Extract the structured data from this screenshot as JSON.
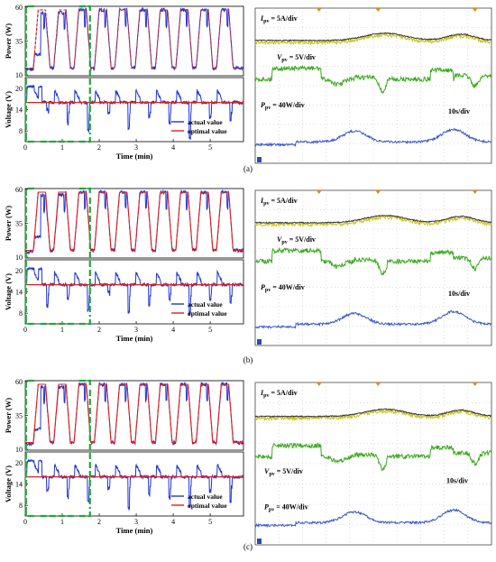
{
  "figure": {
    "panels": [
      {
        "caption": "(a)"
      },
      {
        "caption": "(b)"
      },
      {
        "caption": "(c)"
      }
    ]
  },
  "colors": {
    "actual": "#1f35d6",
    "optimal": "#e0201a",
    "bracket": "#22a83a",
    "scope_bg": "#ffffff",
    "scope_grid": "#b9b9b9",
    "ipv_trace": "#c9c21c",
    "vpv_trace": "#3aa81c",
    "ppv_trace": "#3b58c8"
  },
  "chart_data": [
    {
      "type": "line",
      "panel": "(a)",
      "x_label": "Time (min)",
      "x_ticks": [
        "0",
        "1",
        "2",
        "3",
        "4",
        "5"
      ],
      "xlim": [
        0,
        5.9
      ],
      "power": {
        "ylabel": "Power (W)",
        "ylim": [
          10,
          60
        ],
        "yticks": [
          "60",
          "35",
          "10"
        ]
      },
      "voltage": {
        "ylabel": "Voltage (V)",
        "ylim": [
          5,
          23
        ],
        "yticks": [
          "20",
          "14",
          "8"
        ]
      },
      "legend": [
        "actual value",
        "optimal value"
      ],
      "cycles": [
        0.4,
        1.0,
        1.6,
        2.2,
        2.7,
        3.3,
        3.8,
        4.4,
        5.0,
        5.5
      ],
      "power_optimal_high": 58,
      "power_optimal_low": 15,
      "voltage_optimal": 16,
      "voltage_actual_dips": [
        14,
        10,
        8,
        13,
        9,
        12,
        10,
        6,
        12,
        11
      ],
      "scope": {
        "labels": [
          {
            "sym": "I",
            "sub": "pv",
            "text": " = 5A/div"
          },
          {
            "sym": "V",
            "sub": "pv",
            "text": " = 5V/div"
          },
          {
            "sym": "P",
            "sub": "pv",
            "text": " = 40W/div"
          },
          {
            "sym": "",
            "sub": "",
            "text": "10s/div"
          }
        ]
      }
    },
    {
      "type": "line",
      "panel": "(b)",
      "x_label": "Time (min)",
      "x_ticks": [
        "0",
        "1",
        "2",
        "3",
        "4",
        "5"
      ],
      "xlim": [
        0,
        5.9
      ],
      "power": {
        "ylabel": "Power (W)",
        "ylim": [
          10,
          60
        ],
        "yticks": [
          "60",
          "35",
          "10"
        ]
      },
      "voltage": {
        "ylabel": "Voltage (V)",
        "ylim": [
          5,
          23
        ],
        "yticks": [
          "20",
          "14",
          "8"
        ]
      },
      "legend": [
        "actual value",
        "optimal value"
      ],
      "power_optimal_high": 58,
      "power_optimal_low": 15,
      "voltage_optimal": 16,
      "voltage_actual_dips": [
        10,
        12,
        9,
        14,
        8,
        10,
        12,
        8,
        12,
        11
      ],
      "scope": {
        "labels": [
          {
            "sym": "I",
            "sub": "pv",
            "text": " = 5A/div"
          },
          {
            "sym": "V",
            "sub": "pv",
            "text": " = 5V/div"
          },
          {
            "sym": "P",
            "sub": "pv",
            "text": " = 40W/div"
          },
          {
            "sym": "",
            "sub": "",
            "text": "10s/div"
          }
        ]
      }
    },
    {
      "type": "line",
      "panel": "(c)",
      "x_label": "Time (min)",
      "x_ticks": [
        "0",
        "1",
        "2",
        "3",
        "4",
        "5"
      ],
      "xlim": [
        0,
        5.9
      ],
      "power": {
        "ylabel": "Power (W)",
        "ylim": [
          10,
          60
        ],
        "yticks": [
          "60",
          "35",
          "10"
        ]
      },
      "voltage": {
        "ylabel": "Voltage (V)",
        "ylim": [
          5,
          23
        ],
        "yticks": [
          "20",
          "14",
          "8"
        ]
      },
      "legend": [
        "actual value",
        "optimal value"
      ],
      "power_optimal_high": 58,
      "power_optimal_low": 15,
      "voltage_optimal": 16,
      "voltage_actual_dips": [
        12,
        10,
        9,
        13,
        7,
        11,
        10,
        8,
        12,
        9
      ],
      "scope": {
        "labels": [
          {
            "sym": "I",
            "sub": "pv",
            "text": " = 5A/div"
          },
          {
            "sym": "V",
            "sub": "pv",
            "text": " = 5V/div"
          },
          {
            "sym": "P",
            "sub": "pv",
            "text": " = 40W/div"
          },
          {
            "sym": "",
            "sub": "",
            "text": "10s/div"
          }
        ]
      }
    }
  ]
}
